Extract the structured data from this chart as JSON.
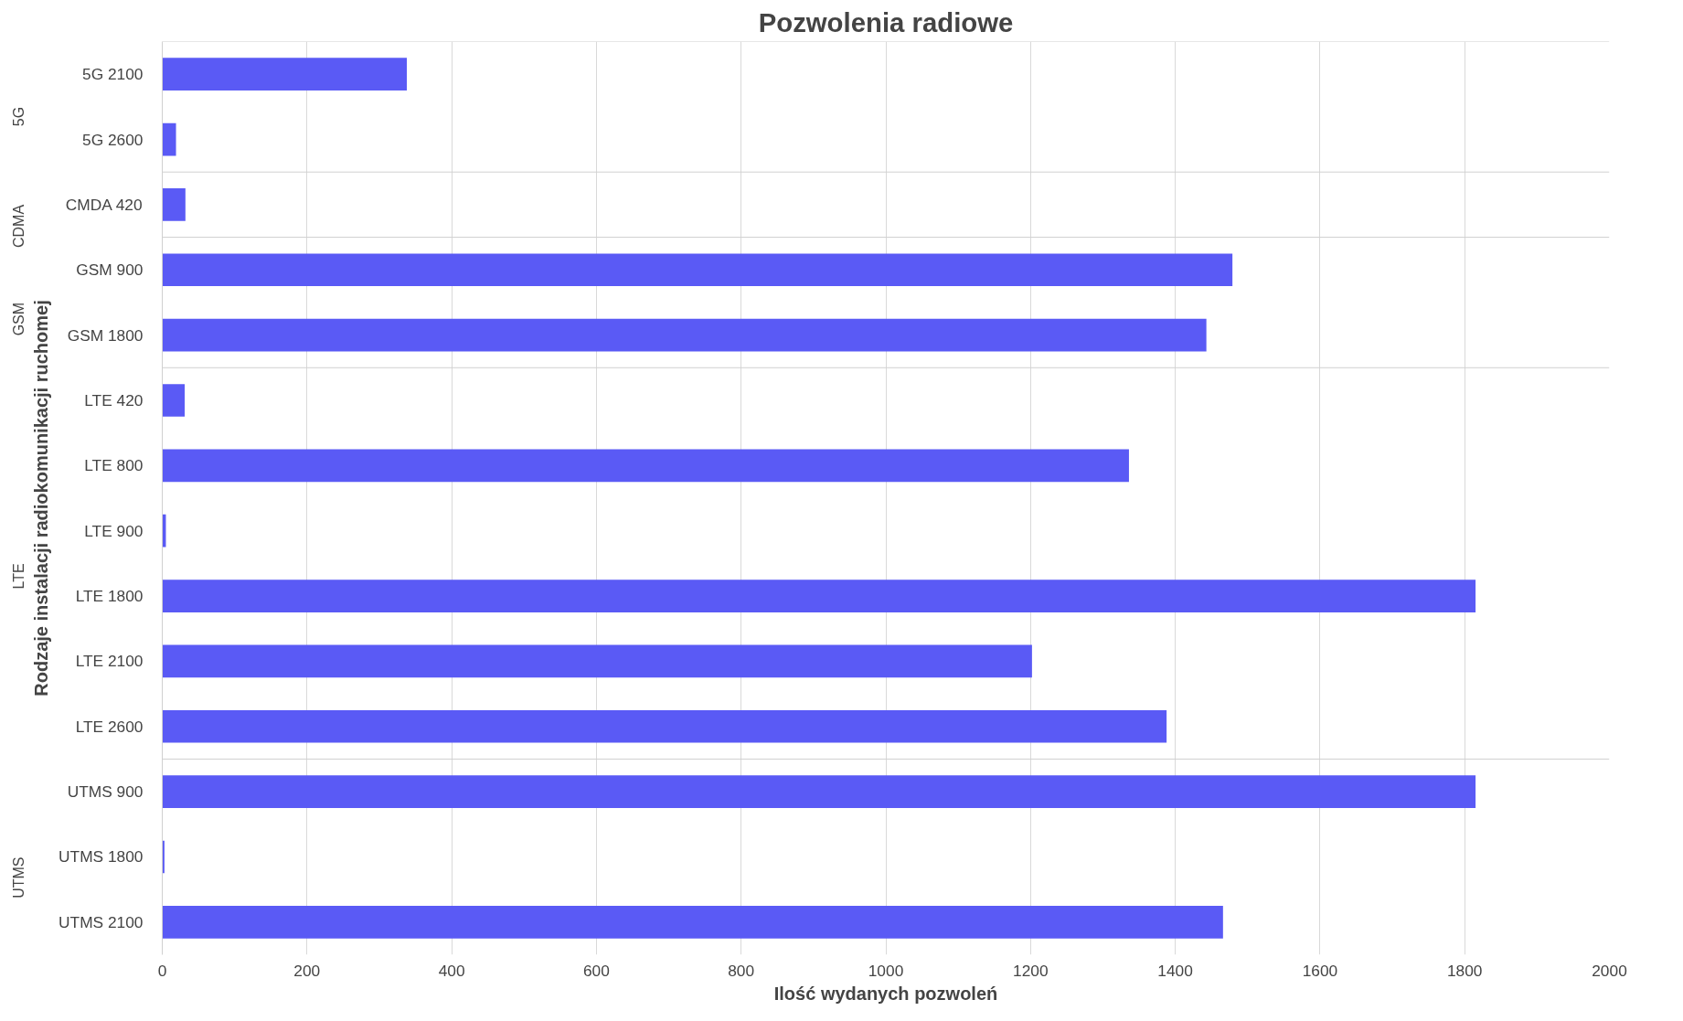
{
  "chart_data": {
    "type": "bar",
    "orientation": "horizontal",
    "title": "Pozwolenia radiowe",
    "xlabel": "Ilość wydanych pozwoleń",
    "ylabel": "Rodzaje instalacji radiokomunikacji ruchomej",
    "categories": [
      "5G 2100",
      "5G 2600",
      "CMDA 420",
      "GSM 900",
      "GSM 1800",
      "LTE 420",
      "LTE 800",
      "LTE 900",
      "LTE 1800",
      "LTE 2100",
      "LTE 2600",
      "UTMS 900",
      "UTMS 1800",
      "UTMS 2100"
    ],
    "values": [
      338,
      19,
      32,
      1479,
      1443,
      31,
      1336,
      5,
      1815,
      1202,
      1388,
      1815,
      3,
      1466
    ],
    "color": "#5a5af5",
    "xlim": [
      0,
      2000
    ],
    "xticks": [
      0,
      200,
      400,
      600,
      800,
      1000,
      1200,
      1400,
      1600,
      1800,
      2000
    ],
    "grid": "x",
    "annotations": [
      "5G",
      "CDMA",
      "GSM",
      "LTE",
      "UTMS"
    ]
  }
}
